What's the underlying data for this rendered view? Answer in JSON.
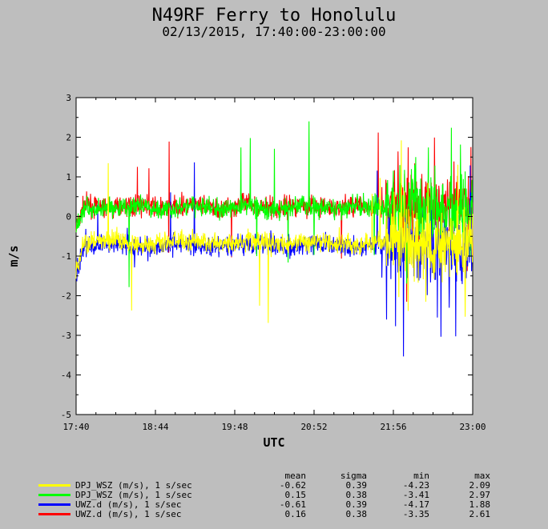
{
  "chart_data": {
    "type": "line",
    "title": "N49RF Ferry to Honolulu",
    "subtitle": "02/13/2015, 17:40:00-23:00:00",
    "xlabel": "UTC",
    "ylabel": "m/s",
    "ylim": [
      -5,
      3
    ],
    "yticks": [
      "3",
      "2",
      "1",
      "0",
      "-1",
      "-2",
      "-3",
      "-4",
      "-5"
    ],
    "xlim": [
      "17:40",
      "23:00"
    ],
    "xticks": [
      "17:40",
      "18:44",
      "19:48",
      "20:52",
      "21:56",
      "23:00"
    ],
    "grid": false,
    "legend_position": "bottom",
    "stat_columns": [
      "mean",
      "sigma",
      "min",
      "max"
    ],
    "series": [
      {
        "name": "DPJ_WSZ (m/s), 1 s/sec",
        "color": "#ffff00",
        "mean": "-0.62",
        "sigma": "0.39",
        "min": "-4.23",
        "max": "2.09"
      },
      {
        "name": "DPJ_WSZ (m/s), 1 s/sec",
        "color": "#00ff00",
        "mean": "0.15",
        "sigma": "0.38",
        "min": "-3.41",
        "max": "2.97"
      },
      {
        "name": "UWZ.d (m/s), 1 s/sec",
        "color": "#0000ff",
        "mean": "-0.61",
        "sigma": "0.39",
        "min": "-4.17",
        "max": "1.88"
      },
      {
        "name": "UWZ.d (m/s), 1 s/sec",
        "color": "#ff0000",
        "mean": "0.16",
        "sigma": "0.38",
        "min": "-3.35",
        "max": "2.61"
      }
    ]
  }
}
